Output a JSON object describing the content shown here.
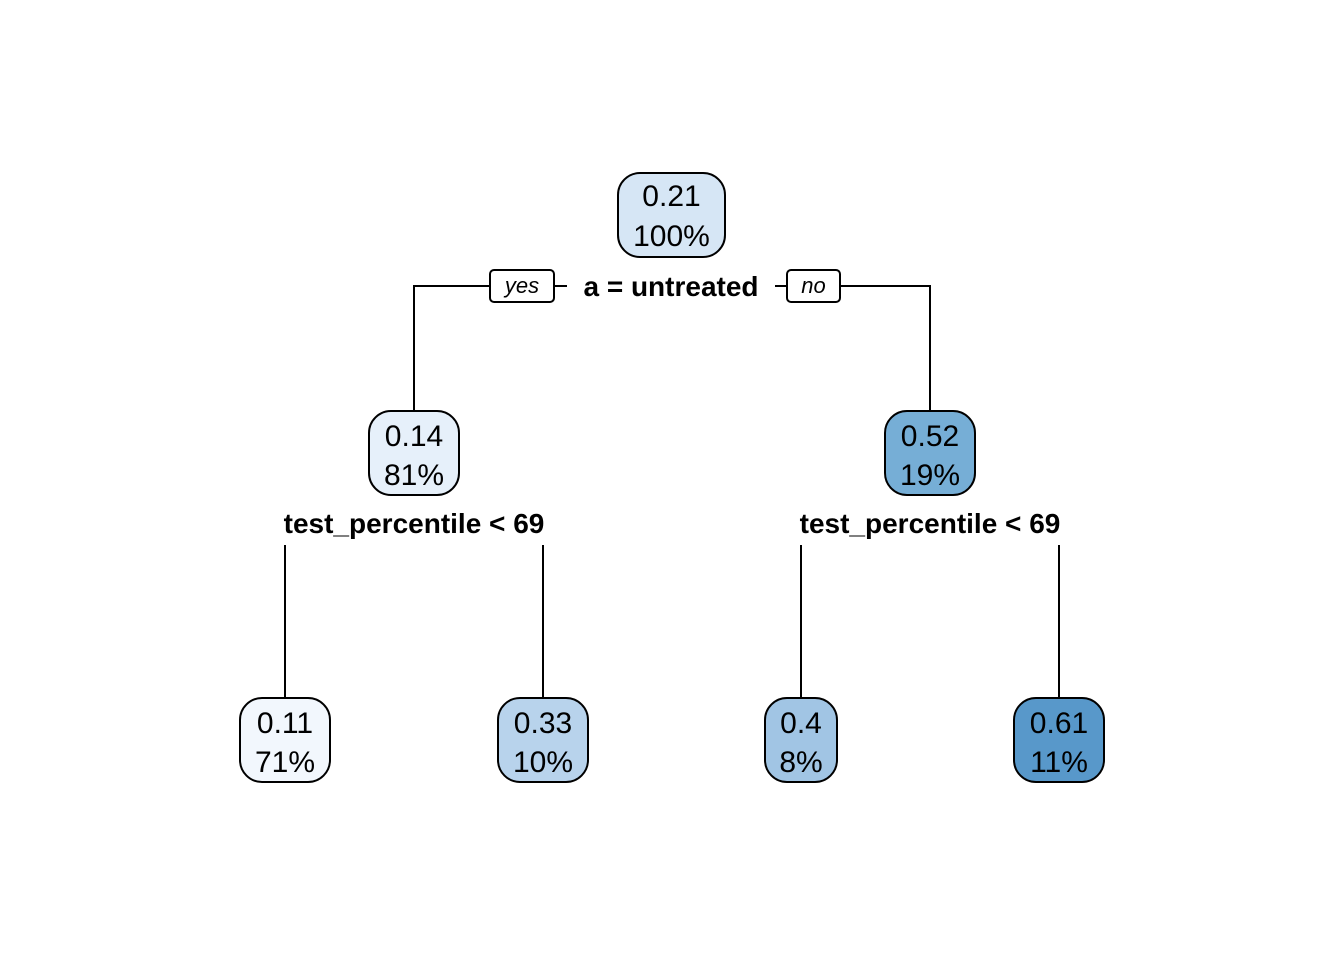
{
  "tree": {
    "nodes": [
      {
        "id": "root",
        "value": "0.21",
        "percent": "100%",
        "fill": "#d6e6f5"
      },
      {
        "id": "left",
        "value": "0.14",
        "percent": "81%",
        "fill": "#e6f0fa"
      },
      {
        "id": "right",
        "value": "0.52",
        "percent": "19%",
        "fill": "#76aed6"
      },
      {
        "id": "leaf1",
        "value": "0.11",
        "percent": "71%",
        "fill": "#f2f7fd"
      },
      {
        "id": "leaf2",
        "value": "0.33",
        "percent": "10%",
        "fill": "#b8d3ec"
      },
      {
        "id": "leaf3",
        "value": "0.4",
        "percent": "8%",
        "fill": "#a1c5e4"
      },
      {
        "id": "leaf4",
        "value": "0.61",
        "percent": "11%",
        "fill": "#5898ca"
      }
    ],
    "splits": {
      "root": "a = untreated",
      "left": "test_percentile < 69",
      "right": "test_percentile < 69"
    },
    "branch_labels": {
      "yes": "yes",
      "no": "no"
    }
  }
}
